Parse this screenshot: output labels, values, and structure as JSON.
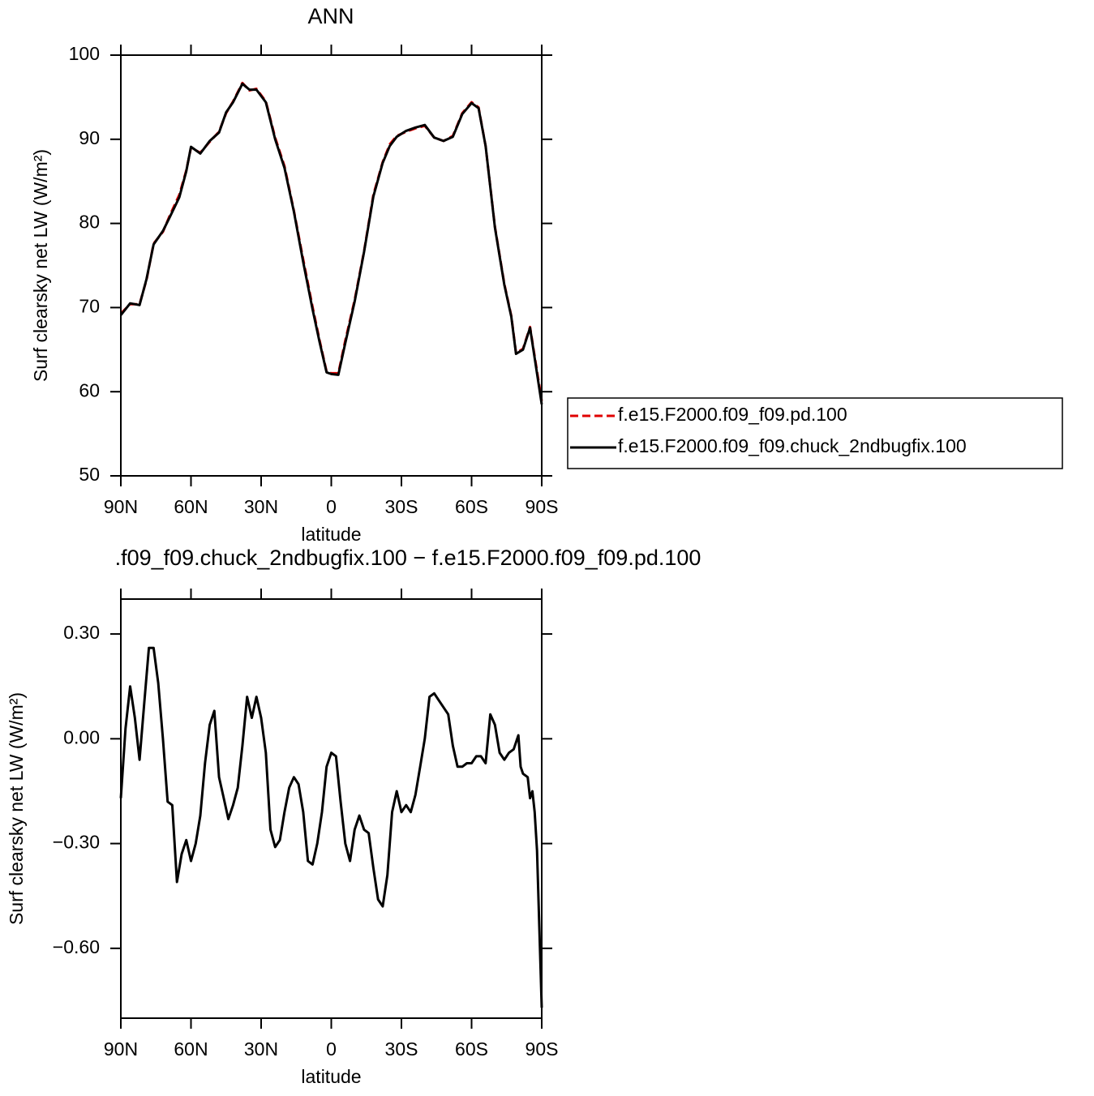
{
  "chart_data": [
    {
      "type": "line",
      "title": "ANN",
      "xlabel": "latitude",
      "ylabel": "Surf clearsky net LW (W/m²)",
      "x": [
        90,
        86,
        82,
        79,
        76,
        72,
        69,
        65,
        62,
        60,
        56,
        52,
        48,
        45,
        42,
        38,
        35,
        32,
        28,
        24,
        20,
        16,
        12,
        8,
        5,
        2,
        0,
        -3,
        -6,
        -10,
        -14,
        -18,
        -22,
        -25,
        -28,
        -32,
        -36,
        -40,
        -44,
        -48,
        -52,
        -56,
        -60,
        -63,
        -66,
        -70,
        -74,
        -77,
        -79,
        -82,
        -85,
        -87,
        -90
      ],
      "series": [
        {
          "name": "f.e15.F2000.f09_f09.pd.100",
          "color": "#e00000",
          "linestyle": "dashed",
          "values": [
            69.3,
            70.4,
            70.4,
            73.3,
            77.6,
            79,
            81,
            83.4,
            86.3,
            89,
            88.4,
            89.7,
            90.9,
            93.1,
            94.5,
            96.7,
            95.8,
            96,
            94.5,
            90.2,
            86.8,
            81.5,
            75.7,
            70.1,
            66.1,
            62.4,
            62.2,
            62.2,
            66.1,
            70.9,
            76.7,
            83.4,
            87.3,
            89.4,
            90.4,
            90.9,
            91.3,
            91.6,
            90.2,
            89.8,
            90.4,
            93.1,
            94.4,
            93.8,
            89.2,
            79.6,
            72.8,
            69,
            64.6,
            65.1,
            67.7,
            64.2,
            58.9
          ]
        },
        {
          "name": "f.e15.F2000.f09_f09.chuck_2ndbugfix.100",
          "color": "#000000",
          "linestyle": "solid",
          "values": [
            69.1,
            70.5,
            70.3,
            73.4,
            77.5,
            79.1,
            80.8,
            83.1,
            86.2,
            89.1,
            88.3,
            89.8,
            90.8,
            93.2,
            94.4,
            96.6,
            95.9,
            95.9,
            94.4,
            90.0,
            86.6,
            81.4,
            75.4,
            69.8,
            65.9,
            62.3,
            62.1,
            62.0,
            65.8,
            70.7,
            76.6,
            83.2,
            87.2,
            89.2,
            90.3,
            91.0,
            91.4,
            91.7,
            90.2,
            89.8,
            90.3,
            93.0,
            94.3,
            93.7,
            89.2,
            79.5,
            72.7,
            68.9,
            64.5,
            65.0,
            67.6,
            64.0,
            58.5
          ]
        }
      ],
      "xlim": [
        90,
        -90
      ],
      "ylim": [
        50,
        100
      ],
      "xticks": [
        {
          "value": 90,
          "label": "90N"
        },
        {
          "value": 60,
          "label": "60N"
        },
        {
          "value": 30,
          "label": "30N"
        },
        0,
        {
          "value": -30,
          "label": "30S"
        },
        {
          "value": -60,
          "label": "60S"
        },
        {
          "value": -90,
          "label": "90S"
        }
      ],
      "yticks": [
        50,
        60,
        70,
        80,
        90,
        100
      ],
      "legend": "right"
    },
    {
      "type": "line",
      "title": ".f09_f09.chuck_2ndbugfix.100 − f.e15.F2000.f09_f09.pd.100",
      "xlabel": "latitude",
      "ylabel": "Surf clearsky net LW (W/m²)",
      "x": [
        90,
        88,
        86,
        84,
        82,
        80,
        78,
        76,
        74,
        72,
        70,
        68,
        66,
        64,
        62,
        60,
        58,
        56,
        54,
        52,
        50,
        48,
        46,
        44,
        42,
        40,
        38,
        36,
        34,
        32,
        30,
        28,
        26,
        24,
        22,
        20,
        18,
        16,
        14,
        12,
        10,
        8,
        6,
        4,
        2,
        0,
        -2,
        -4,
        -6,
        -8,
        -10,
        -12,
        -14,
        -16,
        -18,
        -20,
        -22,
        -24,
        -26,
        -28,
        -30,
        -32,
        -34,
        -36,
        -38,
        -40,
        -42,
        -44,
        -46,
        -48,
        -50,
        -52,
        -54,
        -56,
        -58,
        -60,
        -62,
        -64,
        -66,
        -68,
        -70,
        -72,
        -74,
        -76,
        -78,
        -80,
        -81,
        -82,
        -84,
        -85,
        -86,
        -87,
        -88,
        -90
      ],
      "series": [
        {
          "name": "difference",
          "color": "#000000",
          "linestyle": "solid",
          "values": [
            -0.17,
            0.03,
            0.15,
            0.06,
            -0.06,
            0.1,
            0.26,
            0.26,
            0.16,
            0.0,
            -0.18,
            -0.19,
            -0.41,
            -0.33,
            -0.29,
            -0.35,
            -0.3,
            -0.22,
            -0.07,
            0.04,
            0.08,
            -0.11,
            -0.17,
            -0.23,
            -0.19,
            -0.14,
            -0.02,
            0.12,
            0.06,
            0.12,
            0.06,
            -0.04,
            -0.26,
            -0.31,
            -0.29,
            -0.21,
            -0.14,
            -0.11,
            -0.13,
            -0.21,
            -0.35,
            -0.36,
            -0.3,
            -0.21,
            -0.08,
            -0.04,
            -0.05,
            -0.18,
            -0.3,
            -0.35,
            -0.26,
            -0.22,
            -0.26,
            -0.27,
            -0.37,
            -0.46,
            -0.48,
            -0.39,
            -0.21,
            -0.15,
            -0.21,
            -0.19,
            -0.21,
            -0.16,
            -0.08,
            0.0,
            0.12,
            0.13,
            0.11,
            0.09,
            0.07,
            -0.02,
            -0.08,
            -0.08,
            -0.07,
            -0.07,
            -0.05,
            -0.05,
            -0.07,
            0.07,
            0.04,
            -0.04,
            -0.06,
            -0.04,
            -0.03,
            0.01,
            -0.08,
            -0.1,
            -0.11,
            -0.17,
            -0.15,
            -0.21,
            -0.32,
            -0.77
          ]
        }
      ],
      "xlim": [
        90,
        -90
      ],
      "ylim": [
        -0.8,
        0.4
      ],
      "xticks": [
        {
          "value": 90,
          "label": "90N"
        },
        {
          "value": 60,
          "label": "60N"
        },
        {
          "value": 30,
          "label": "30N"
        },
        0,
        {
          "value": -30,
          "label": "30S"
        },
        {
          "value": -60,
          "label": "60S"
        },
        {
          "value": -90,
          "label": "90S"
        }
      ],
      "yticks": [
        {
          "value": 0.3,
          "label": "0.30"
        },
        {
          "value": 0,
          "label": "0.00"
        },
        {
          "value": -0.3,
          "label": "−0.30"
        },
        {
          "value": -0.6,
          "label": "−0.60"
        }
      ]
    }
  ]
}
